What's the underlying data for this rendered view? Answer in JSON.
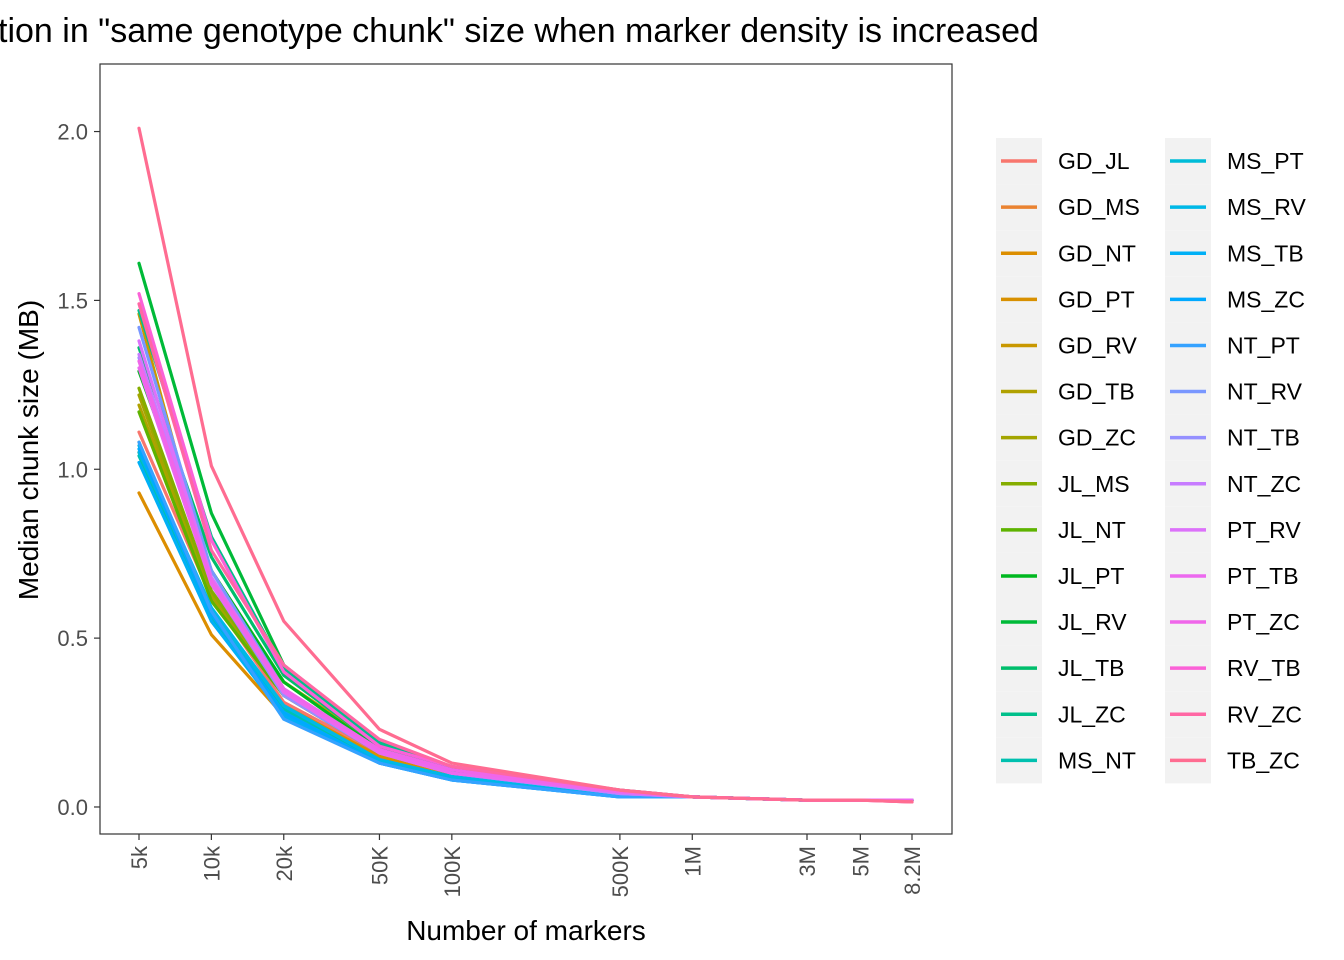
{
  "chart_data": {
    "type": "line",
    "title": "tion in \"same genotype chunk\" size when marker density is increased",
    "xlabel": "Number of markers",
    "ylabel": "Median chunk size (MB)",
    "x_categories": [
      "5k",
      "10k",
      "20k",
      "50K",
      "100K",
      "500K",
      "1M",
      "3M",
      "5M",
      "8.2M"
    ],
    "x_values": [
      5000,
      10000,
      20000,
      50000,
      100000,
      500000,
      1000000,
      3000000,
      5000000,
      8200000
    ],
    "x_scale": "log10",
    "ylim": [
      -0.08,
      2.2
    ],
    "y_ticks": [
      "0.0",
      "0.5",
      "1.0",
      "1.5",
      "2.0"
    ],
    "y_tick_values": [
      0,
      0.5,
      1.0,
      1.5,
      2.0
    ],
    "grid": false,
    "legend_position": "right",
    "legend_columns": 2,
    "series": [
      {
        "name": "GD_JL",
        "color": "#F8766D",
        "values": [
          1.11,
          0.62,
          0.31,
          0.16,
          0.1,
          0.045,
          0.03,
          0.02,
          0.02,
          0.02
        ]
      },
      {
        "name": "GD_MS",
        "color": "#EA8331",
        "values": [
          1.08,
          0.55,
          0.28,
          0.14,
          0.09,
          0.04,
          0.03,
          0.02,
          0.02,
          0.02
        ]
      },
      {
        "name": "GD_NT",
        "color": "#DC8E00",
        "values": [
          0.93,
          0.51,
          0.27,
          0.14,
          0.085,
          0.035,
          0.03,
          0.02,
          0.02,
          0.02
        ]
      },
      {
        "name": "GD_PT",
        "color": "#D89000",
        "values": [
          1.05,
          0.56,
          0.3,
          0.15,
          0.09,
          0.04,
          0.03,
          0.02,
          0.02,
          0.02
        ]
      },
      {
        "name": "GD_RV",
        "color": "#C99800",
        "values": [
          1.46,
          0.66,
          0.37,
          0.18,
          0.11,
          0.045,
          0.03,
          0.02,
          0.02,
          0.02
        ]
      },
      {
        "name": "GD_TB",
        "color": "#B0A100",
        "values": [
          1.19,
          0.62,
          0.33,
          0.16,
          0.1,
          0.04,
          0.03,
          0.02,
          0.02,
          0.02
        ]
      },
      {
        "name": "GD_ZC",
        "color": "#A3A500",
        "values": [
          1.22,
          0.63,
          0.34,
          0.17,
          0.1,
          0.045,
          0.03,
          0.02,
          0.02,
          0.02
        ]
      },
      {
        "name": "JL_MS",
        "color": "#85AD00",
        "values": [
          1.24,
          0.64,
          0.34,
          0.17,
          0.1,
          0.045,
          0.03,
          0.02,
          0.02,
          0.02
        ]
      },
      {
        "name": "JL_NT",
        "color": "#5EB300",
        "values": [
          1.17,
          0.61,
          0.33,
          0.16,
          0.1,
          0.04,
          0.03,
          0.02,
          0.02,
          0.02
        ]
      },
      {
        "name": "JL_PT",
        "color": "#00B81F",
        "values": [
          1.29,
          0.7,
          0.37,
          0.17,
          0.11,
          0.045,
          0.03,
          0.02,
          0.02,
          0.02
        ]
      },
      {
        "name": "JL_RV",
        "color": "#00BA38",
        "values": [
          1.61,
          0.87,
          0.42,
          0.19,
          0.12,
          0.05,
          0.03,
          0.02,
          0.02,
          0.02
        ]
      },
      {
        "name": "JL_TB",
        "color": "#00BE6C",
        "values": [
          1.36,
          0.74,
          0.39,
          0.18,
          0.11,
          0.045,
          0.03,
          0.02,
          0.02,
          0.02
        ]
      },
      {
        "name": "JL_ZC",
        "color": "#00C08B",
        "values": [
          1.47,
          0.8,
          0.41,
          0.19,
          0.11,
          0.045,
          0.03,
          0.02,
          0.02,
          0.02
        ]
      },
      {
        "name": "MS_NT",
        "color": "#00C0AF",
        "values": [
          1.04,
          0.56,
          0.29,
          0.14,
          0.085,
          0.035,
          0.03,
          0.02,
          0.02,
          0.02
        ]
      },
      {
        "name": "MS_PT",
        "color": "#00BCD8",
        "values": [
          1.05,
          0.58,
          0.3,
          0.14,
          0.09,
          0.035,
          0.03,
          0.02,
          0.02,
          0.02
        ]
      },
      {
        "name": "MS_RV",
        "color": "#00B8E7",
        "values": [
          1.07,
          0.59,
          0.3,
          0.14,
          0.09,
          0.035,
          0.03,
          0.02,
          0.02,
          0.02
        ]
      },
      {
        "name": "MS_TB",
        "color": "#00B0F6",
        "values": [
          1.02,
          0.55,
          0.27,
          0.13,
          0.08,
          0.03,
          0.03,
          0.02,
          0.02,
          0.02
        ]
      },
      {
        "name": "MS_ZC",
        "color": "#00A9FF",
        "values": [
          1.06,
          0.57,
          0.28,
          0.13,
          0.08,
          0.03,
          0.03,
          0.02,
          0.02,
          0.02
        ]
      },
      {
        "name": "NT_PT",
        "color": "#35A2FF",
        "values": [
          1.08,
          0.58,
          0.26,
          0.13,
          0.08,
          0.03,
          0.03,
          0.02,
          0.02,
          0.02
        ]
      },
      {
        "name": "NT_RV",
        "color": "#7997FF",
        "values": [
          1.42,
          0.7,
          0.35,
          0.16,
          0.1,
          0.04,
          0.03,
          0.02,
          0.02,
          0.02
        ]
      },
      {
        "name": "NT_TB",
        "color": "#9590FF",
        "values": [
          1.33,
          0.66,
          0.33,
          0.16,
          0.1,
          0.04,
          0.03,
          0.02,
          0.02,
          0.02
        ]
      },
      {
        "name": "NT_ZC",
        "color": "#C77CFF",
        "values": [
          1.34,
          0.67,
          0.34,
          0.16,
          0.1,
          0.04,
          0.03,
          0.02,
          0.02,
          0.02
        ]
      },
      {
        "name": "PT_RV",
        "color": "#DC71FA",
        "values": [
          1.38,
          0.68,
          0.35,
          0.17,
          0.1,
          0.045,
          0.03,
          0.02,
          0.02,
          0.02
        ]
      },
      {
        "name": "PT_TB",
        "color": "#EC69EF",
        "values": [
          1.3,
          0.66,
          0.34,
          0.16,
          0.1,
          0.045,
          0.03,
          0.02,
          0.02,
          0.02
        ]
      },
      {
        "name": "PT_ZC",
        "color": "#F066EA",
        "values": [
          1.32,
          0.67,
          0.35,
          0.17,
          0.11,
          0.045,
          0.03,
          0.02,
          0.02,
          0.02
        ]
      },
      {
        "name": "RV_TB",
        "color": "#FB61D7",
        "values": [
          1.52,
          0.79,
          0.4,
          0.18,
          0.12,
          0.05,
          0.03,
          0.02,
          0.02,
          0.015
        ]
      },
      {
        "name": "RV_ZC",
        "color": "#FF67A4",
        "values": [
          1.49,
          0.76,
          0.42,
          0.2,
          0.12,
          0.05,
          0.03,
          0.02,
          0.02,
          0.015
        ]
      },
      {
        "name": "TB_ZC",
        "color": "#FF6C91",
        "values": [
          2.01,
          1.01,
          0.55,
          0.23,
          0.13,
          0.05,
          0.03,
          0.02,
          0.02,
          0.015
        ]
      }
    ]
  }
}
